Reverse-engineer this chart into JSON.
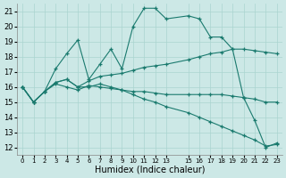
{
  "xlabel": "Humidex (Indice chaleur)",
  "bg_color": "#cce8e6",
  "grid_color": "#aad4d0",
  "line_color": "#1a7a6e",
  "xlim": [
    -0.5,
    23.5
  ],
  "ylim": [
    11.5,
    21.5
  ],
  "yticks": [
    12,
    13,
    14,
    15,
    16,
    17,
    18,
    19,
    20,
    21
  ],
  "xtick_positions": [
    0,
    1,
    2,
    3,
    4,
    5,
    6,
    7,
    8,
    9,
    10,
    11,
    12,
    13,
    15,
    16,
    17,
    18,
    19,
    20,
    21,
    22,
    23
  ],
  "xtick_labels": [
    "0",
    "1",
    "2",
    "3",
    "4",
    "5",
    "6",
    "7",
    "8",
    "9",
    "10",
    "11",
    "12",
    "13",
    "15",
    "16",
    "17",
    "18",
    "19",
    "20",
    "21",
    "22",
    "23"
  ],
  "series": [
    {
      "x": [
        0,
        1,
        2,
        3,
        4,
        5,
        6,
        7,
        8,
        9,
        10,
        11,
        12,
        13,
        15,
        16,
        17,
        18,
        19,
        20,
        21,
        22,
        23
      ],
      "y": [
        16,
        15,
        15.7,
        17.2,
        18.2,
        19.1,
        16.5,
        17.5,
        18.5,
        17.2,
        20.0,
        21.2,
        21.2,
        20.5,
        20.7,
        20.5,
        19.3,
        19.3,
        18.5,
        15.3,
        13.8,
        12.0,
        12.3
      ]
    },
    {
      "x": [
        0,
        1,
        2,
        3,
        4,
        5,
        6,
        7,
        8,
        9,
        10,
        11,
        12,
        13,
        15,
        16,
        17,
        18,
        19,
        20,
        21,
        22,
        23
      ],
      "y": [
        16,
        15.0,
        15.7,
        16.2,
        16.0,
        15.8,
        16.1,
        16.0,
        15.9,
        15.8,
        15.7,
        15.7,
        15.6,
        15.5,
        15.5,
        15.5,
        15.5,
        15.5,
        15.4,
        15.3,
        15.2,
        15.0,
        15.0
      ]
    },
    {
      "x": [
        0,
        1,
        2,
        3,
        4,
        5,
        6,
        7,
        8,
        9,
        10,
        11,
        12,
        13,
        15,
        16,
        17,
        18,
        19,
        20,
        21,
        22,
        23
      ],
      "y": [
        16,
        15.0,
        15.7,
        16.3,
        16.5,
        16.0,
        16.4,
        16.7,
        16.8,
        16.9,
        17.1,
        17.3,
        17.4,
        17.5,
        17.8,
        18.0,
        18.2,
        18.3,
        18.5,
        18.5,
        18.4,
        18.3,
        18.2
      ]
    },
    {
      "x": [
        0,
        1,
        2,
        3,
        4,
        5,
        6,
        7,
        8,
        9,
        10,
        11,
        12,
        13,
        15,
        16,
        17,
        18,
        19,
        20,
        21,
        22,
        23
      ],
      "y": [
        16,
        15.0,
        15.7,
        16.3,
        16.5,
        16.0,
        16.0,
        16.2,
        16.0,
        15.8,
        15.5,
        15.2,
        15.0,
        14.7,
        14.3,
        14.0,
        13.7,
        13.4,
        13.1,
        12.8,
        12.5,
        12.1,
        12.2
      ]
    }
  ]
}
